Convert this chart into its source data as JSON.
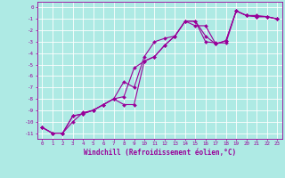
{
  "xlabel": "Windchill (Refroidissement éolien,°C)",
  "bg_color": "#aeeae4",
  "grid_color": "#ffffff",
  "line_color": "#990099",
  "xlim": [
    -0.5,
    23.5
  ],
  "ylim": [
    -11.5,
    0.5
  ],
  "xticks": [
    0,
    1,
    2,
    3,
    4,
    5,
    6,
    7,
    8,
    9,
    10,
    11,
    12,
    13,
    14,
    15,
    16,
    17,
    18,
    19,
    20,
    21,
    22,
    23
  ],
  "yticks": [
    0,
    -1,
    -2,
    -3,
    -4,
    -5,
    -6,
    -7,
    -8,
    -9,
    -10,
    -11
  ],
  "line1_x": [
    0,
    1,
    2,
    3,
    4,
    5,
    6,
    7,
    8,
    9,
    10,
    11,
    12,
    13,
    14,
    15,
    16,
    17,
    18,
    19,
    20,
    21,
    22,
    23
  ],
  "line1_y": [
    -10.5,
    -11.0,
    -11.0,
    -10.0,
    -9.2,
    -9.0,
    -8.5,
    -8.0,
    -7.8,
    -5.3,
    -4.7,
    -4.3,
    -3.3,
    -2.5,
    -1.2,
    -1.2,
    -2.5,
    -3.2,
    -2.9,
    -0.3,
    -0.7,
    -0.8,
    -0.8,
    -1.0
  ],
  "line2_x": [
    0,
    1,
    2,
    3,
    4,
    5,
    6,
    7,
    8,
    9,
    10,
    11,
    12,
    13,
    14,
    15,
    16,
    17,
    18,
    19,
    20,
    21,
    22,
    23
  ],
  "line2_y": [
    -10.5,
    -11.0,
    -11.0,
    -9.5,
    -9.3,
    -9.0,
    -8.5,
    -8.0,
    -6.5,
    -7.0,
    -4.3,
    -3.0,
    -2.7,
    -2.5,
    -1.2,
    -1.2,
    -3.0,
    -3.1,
    -3.1,
    -0.3,
    -0.7,
    -0.7,
    -0.8,
    -1.0
  ],
  "line3_x": [
    0,
    1,
    2,
    3,
    4,
    5,
    6,
    7,
    8,
    9,
    10,
    11,
    12,
    13,
    14,
    15,
    16,
    17,
    18,
    19,
    20,
    21,
    22,
    23
  ],
  "line3_y": [
    -10.5,
    -11.0,
    -11.0,
    -9.5,
    -9.3,
    -9.0,
    -8.5,
    -8.0,
    -8.5,
    -8.5,
    -4.7,
    -4.3,
    -3.3,
    -2.5,
    -1.2,
    -1.6,
    -1.6,
    -3.2,
    -2.9,
    -0.3,
    -0.7,
    -0.8,
    -0.8,
    -1.0
  ],
  "xlabel_fontsize": 5.5,
  "tick_fontsize": 4.2,
  "linewidth": 0.8,
  "markersize": 2.0
}
